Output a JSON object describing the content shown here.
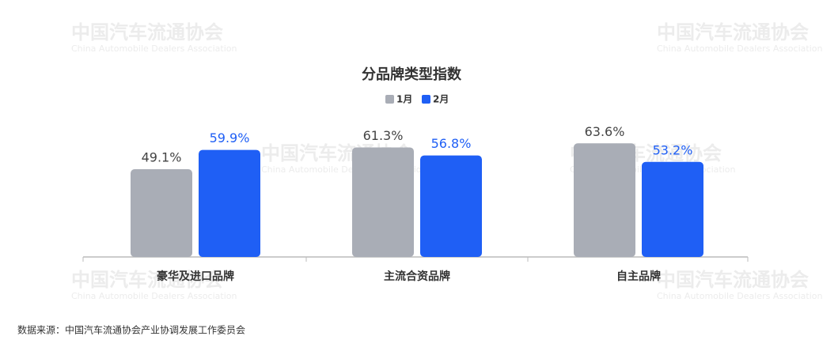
{
  "chart_data": {
    "type": "bar",
    "title": "分品牌类型指数",
    "categories": [
      "豪华及进口品牌",
      "主流合资品牌",
      "自主品牌"
    ],
    "series": [
      {
        "name": "1月",
        "color": "#a9adb6",
        "values": [
          49.1,
          61.3,
          63.6
        ],
        "value_labels": [
          "49.1%",
          "61.3%",
          "63.6%"
        ]
      },
      {
        "name": "2月",
        "color": "#1f5ff5",
        "values": [
          59.9,
          56.8,
          53.2
        ],
        "value_labels": [
          "59.9%",
          "56.8%",
          "53.2%"
        ]
      }
    ],
    "source": "数据来源：中国汽车流通协会产业协调发展工作委员会",
    "watermark": {
      "name": "中国汽车流通协会",
      "english": "China Automobile Dealers Association"
    }
  }
}
